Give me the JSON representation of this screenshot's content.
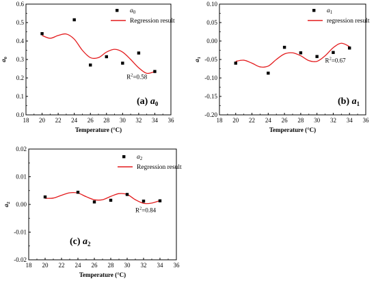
{
  "chart_data": [
    {
      "type": "scatter",
      "panel_prefix": "(a)",
      "panel_symbol": "a",
      "panel_subscript": "0",
      "xlabel": "Temperature (°C)",
      "ylabel": "a",
      "ylabel_sub": "0",
      "xlim": [
        18,
        36
      ],
      "ylim": [
        0.0,
        0.6
      ],
      "xticks": [
        18,
        20,
        22,
        24,
        26,
        28,
        30,
        32,
        34,
        36
      ],
      "yticks": [
        0.0,
        0.1,
        0.2,
        0.3,
        0.4,
        0.5,
        0.6
      ],
      "ytick_labels": [
        "0.0",
        "0.1",
        "0.2",
        "0.3",
        "0.4",
        "0.5",
        "0.6"
      ],
      "legend_placement": "top-right",
      "series": [
        {
          "name": "a",
          "name_sub": "0",
          "kind": "points",
          "color": "#000000",
          "x": [
            20,
            24,
            26,
            28,
            30,
            32,
            34
          ],
          "y": [
            0.44,
            0.515,
            0.27,
            0.315,
            0.28,
            0.335,
            0.235
          ]
        },
        {
          "name": "Regression result",
          "kind": "line",
          "color": "#e31a1c",
          "x": [
            20,
            21,
            22,
            23,
            24,
            25,
            26,
            27,
            28,
            29,
            30,
            31,
            32,
            33,
            34
          ],
          "y": [
            0.43,
            0.415,
            0.43,
            0.438,
            0.41,
            0.35,
            0.31,
            0.31,
            0.34,
            0.355,
            0.34,
            0.3,
            0.255,
            0.225,
            0.235
          ]
        }
      ],
      "annotation": {
        "text": "R",
        "sup": "2",
        "rest": "=0.58"
      }
    },
    {
      "type": "scatter",
      "panel_prefix": "(b)",
      "panel_symbol": "a",
      "panel_subscript": "1",
      "xlabel": "Temperature (°C)",
      "ylabel": "a",
      "ylabel_sub": "1",
      "xlim": [
        18,
        36
      ],
      "ylim": [
        -0.2,
        0.1
      ],
      "xticks": [
        18,
        20,
        22,
        24,
        26,
        28,
        30,
        32,
        34,
        36
      ],
      "yticks": [
        -0.2,
        -0.15,
        -0.1,
        -0.05,
        0.0,
        0.05,
        0.1
      ],
      "ytick_labels": [
        "-0.20",
        "-0.15",
        "-0.10",
        "-0.05",
        "0.00",
        "0.05",
        "0.10"
      ],
      "legend_placement": "top-right",
      "series": [
        {
          "name": "a",
          "name_sub": "1",
          "kind": "points",
          "color": "#000000",
          "x": [
            20,
            24,
            26,
            28,
            30,
            32,
            34
          ],
          "y": [
            -0.06,
            -0.087,
            -0.017,
            -0.032,
            -0.042,
            -0.031,
            -0.019
          ]
        },
        {
          "name": "regression result",
          "kind": "line",
          "color": "#e31a1c",
          "x": [
            20,
            21,
            22,
            23,
            24,
            25,
            26,
            27,
            28,
            29,
            30,
            31,
            32,
            33,
            34
          ],
          "y": [
            -0.055,
            -0.052,
            -0.06,
            -0.07,
            -0.068,
            -0.05,
            -0.035,
            -0.032,
            -0.04,
            -0.053,
            -0.055,
            -0.04,
            -0.018,
            -0.006,
            -0.015
          ]
        }
      ],
      "annotation": {
        "text": "R",
        "sup": "2",
        "rest": "=0.67"
      }
    },
    {
      "type": "scatter",
      "panel_prefix": "(c)",
      "panel_symbol": "a",
      "panel_subscript": "2",
      "xlabel": "Temperature (°C)",
      "ylabel": "a",
      "ylabel_sub": "2",
      "xlim": [
        18,
        36
      ],
      "ylim": [
        -0.02,
        0.02
      ],
      "xticks": [
        18,
        20,
        22,
        24,
        26,
        28,
        30,
        32,
        34,
        36
      ],
      "yticks": [
        -0.02,
        -0.01,
        0.0,
        0.01,
        0.02
      ],
      "ytick_labels": [
        "-0.02",
        "-0.01",
        "0.00",
        "0.01",
        "0.02"
      ],
      "legend_placement": "top-right",
      "series": [
        {
          "name": "a",
          "name_sub": "2",
          "kind": "points",
          "color": "#000000",
          "x": [
            20,
            24,
            26,
            28,
            30,
            32,
            34
          ],
          "y": [
            0.0027,
            0.0044,
            0.0009,
            0.0015,
            0.0036,
            0.0012,
            0.0013
          ]
        },
        {
          "name": "Regression result",
          "kind": "line",
          "color": "#e31a1c",
          "x": [
            20,
            21,
            22,
            23,
            24,
            25,
            26,
            27,
            28,
            29,
            30,
            31,
            32,
            33,
            34
          ],
          "y": [
            0.0022,
            0.0023,
            0.0033,
            0.0042,
            0.0041,
            0.0028,
            0.0017,
            0.0017,
            0.0029,
            0.0039,
            0.0036,
            0.0017,
            0.0004,
            0.0005,
            0.0014
          ]
        }
      ],
      "annotation": {
        "text": "R",
        "sup": "2",
        "rest": "=0.84"
      }
    }
  ]
}
